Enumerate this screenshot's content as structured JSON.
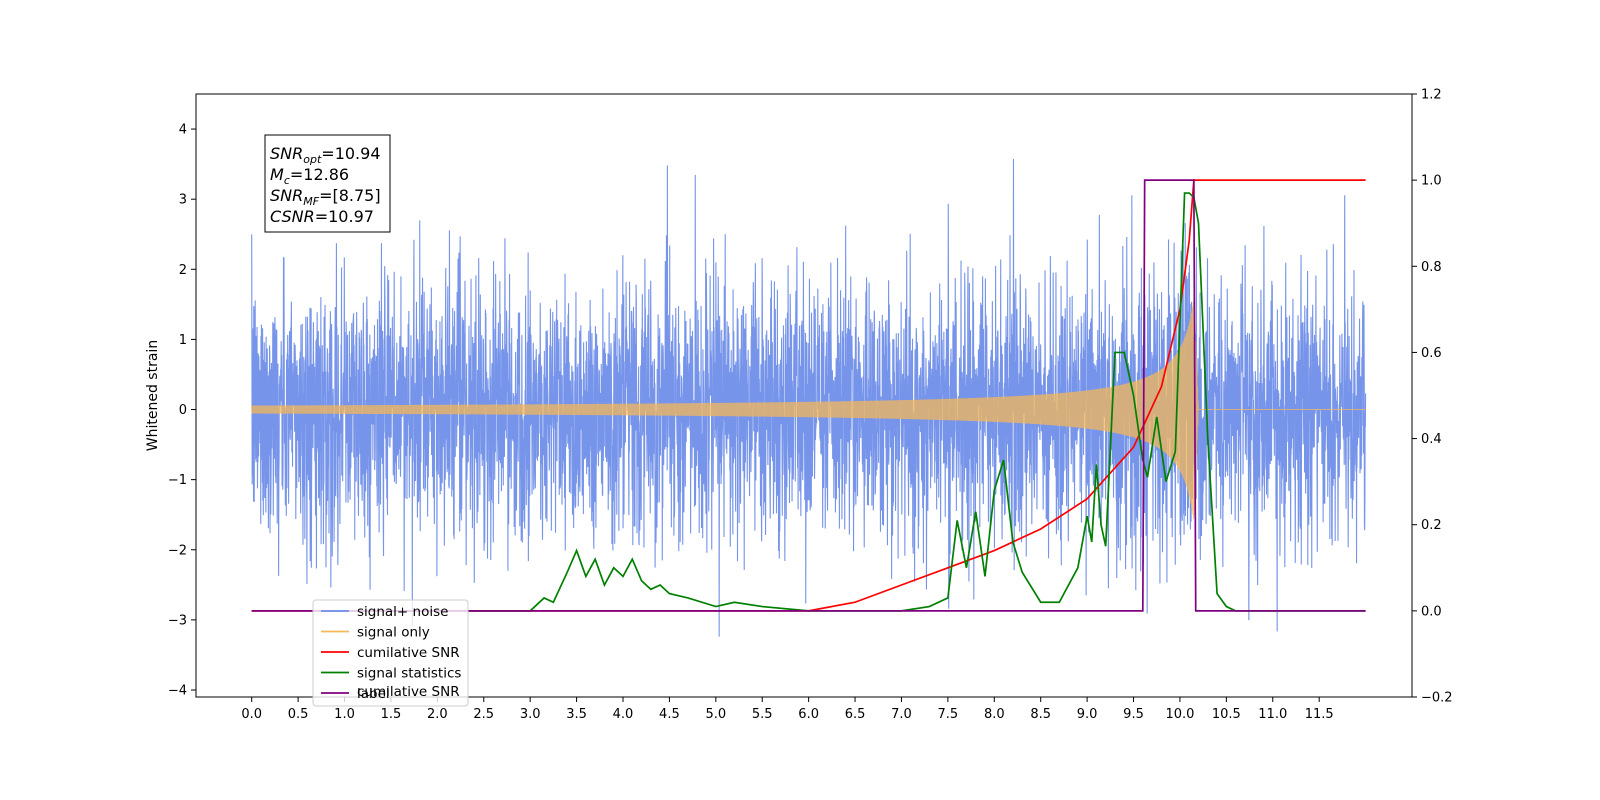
{
  "chart_data": {
    "type": "line",
    "title": "",
    "xlabel": "",
    "ylabel": "Whitened strain",
    "xlim": [
      -0.6,
      12.5
    ],
    "ylim": [
      -4.1,
      4.5
    ],
    "y2lim": [
      -0.2,
      1.2
    ],
    "grid": false,
    "legend_position": "lower-left",
    "x_ticks": [
      "0.0",
      "0.5",
      "1.0",
      "1.5",
      "2.0",
      "2.5",
      "3.0",
      "3.5",
      "4.0",
      "4.5",
      "5.0",
      "5.5",
      "6.0",
      "6.5",
      "7.0",
      "7.5",
      "8.0",
      "8.5",
      "9.0",
      "9.5",
      "10.0",
      "10.5",
      "11.0",
      "11.5"
    ],
    "y_ticks": [
      "4",
      "3",
      "2",
      "1",
      "0",
      "−1",
      "−2",
      "−3",
      "−4"
    ],
    "y2_ticks": [
      "1.2",
      "1.0",
      "0.8",
      "0.6",
      "0.4",
      "0.2",
      "0.0",
      "−0.2"
    ],
    "annotation": {
      "snr_opt": {
        "base": "SNR",
        "sub": "opt",
        "value": "=10.94"
      },
      "mc": {
        "base": "M",
        "sub": "c",
        "value": "=12.86"
      },
      "snr_mf": {
        "base": "SNR",
        "sub": "MF",
        "value": "=[8.75]"
      },
      "csnr": {
        "base": "CSNR",
        "value": "=10.97"
      }
    },
    "series": [
      {
        "name": "signal+ noise",
        "axis": "left",
        "color": "#6f8ee8",
        "description_only": false,
        "noise_std": 0.9,
        "x_range": [
          0.0,
          12.0
        ]
      },
      {
        "name": "signal only",
        "axis": "left",
        "color": "#f5b75a",
        "chirp": {
          "t_start": 0.0,
          "t_merge": 10.15,
          "t_end": 12.0,
          "peak_amp": 1.6
        }
      },
      {
        "name": "cumilative SNR",
        "axis": "right",
        "color": "#ff0000",
        "x": [
          0.0,
          6.0,
          6.5,
          7.0,
          7.5,
          8.0,
          8.5,
          9.0,
          9.5,
          9.8,
          10.0,
          10.1,
          10.15,
          10.2,
          12.0
        ],
        "values": [
          0.0,
          0.0,
          0.02,
          0.06,
          0.1,
          0.14,
          0.19,
          0.26,
          0.38,
          0.52,
          0.7,
          0.86,
          1.0,
          1.0,
          1.0
        ]
      },
      {
        "name": "signal statistics",
        "axis": "right",
        "color": "#008000",
        "x": [
          1.0,
          3.0,
          3.15,
          3.25,
          3.4,
          3.5,
          3.6,
          3.7,
          3.8,
          3.9,
          4.0,
          4.1,
          4.2,
          4.3,
          4.4,
          4.5,
          4.7,
          5.0,
          5.2,
          5.5,
          6.0,
          6.5,
          7.0,
          7.3,
          7.5,
          7.6,
          7.7,
          7.8,
          7.9,
          8.0,
          8.1,
          8.2,
          8.3,
          8.5,
          8.7,
          8.9,
          9.0,
          9.05,
          9.1,
          9.15,
          9.2,
          9.3,
          9.4,
          9.5,
          9.6,
          9.65,
          9.75,
          9.85,
          9.95,
          10.05,
          10.1,
          10.15,
          10.2,
          10.3,
          10.4,
          10.5,
          10.6,
          10.8,
          12.0
        ],
        "values": [
          0.0,
          0.0,
          0.03,
          0.02,
          0.09,
          0.14,
          0.08,
          0.12,
          0.06,
          0.1,
          0.08,
          0.12,
          0.07,
          0.05,
          0.06,
          0.04,
          0.03,
          0.01,
          0.02,
          0.01,
          0.0,
          0.0,
          0.0,
          0.01,
          0.03,
          0.21,
          0.1,
          0.23,
          0.08,
          0.28,
          0.35,
          0.16,
          0.09,
          0.02,
          0.02,
          0.1,
          0.22,
          0.16,
          0.34,
          0.2,
          0.15,
          0.6,
          0.6,
          0.5,
          0.35,
          0.31,
          0.45,
          0.3,
          0.37,
          0.97,
          0.97,
          0.96,
          0.9,
          0.4,
          0.04,
          0.01,
          0.0,
          0.0,
          0.0
        ]
      },
      {
        "name": "label",
        "axis": "right",
        "color": "#800080",
        "x": [
          0.0,
          9.6,
          9.62,
          10.15,
          10.17,
          12.0
        ],
        "values": [
          0.0,
          0.0,
          1.0,
          1.0,
          0.0,
          0.0
        ]
      }
    ],
    "legend": [
      {
        "name": "signal+ noise",
        "color": "#6f8ee8"
      },
      {
        "name": "signal only",
        "color": "#f5b75a"
      },
      {
        "name": "cumilative SNR",
        "color": "#ff0000"
      },
      {
        "name": "signal statistics",
        "color": "#008000"
      },
      {
        "name": "label",
        "color": "#800080"
      }
    ],
    "legend_ghost_text": "cumilative SNR"
  }
}
